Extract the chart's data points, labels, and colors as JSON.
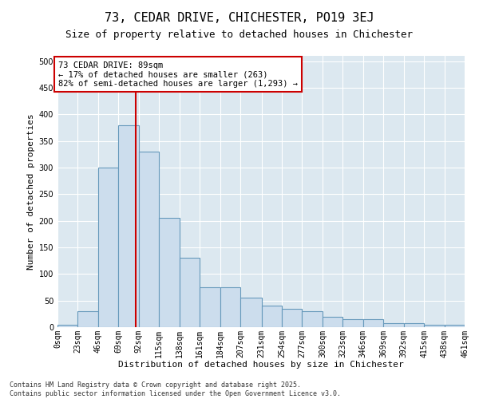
{
  "title": "73, CEDAR DRIVE, CHICHESTER, PO19 3EJ",
  "subtitle": "Size of property relative to detached houses in Chichester",
  "xlabel": "Distribution of detached houses by size in Chichester",
  "ylabel": "Number of detached properties",
  "bar_edges": [
    0,
    23,
    46,
    69,
    92,
    115,
    138,
    161,
    184,
    207,
    231,
    254,
    277,
    300,
    323,
    346,
    369,
    392,
    415,
    438,
    461
  ],
  "bar_heights": [
    5,
    30,
    300,
    380,
    330,
    205,
    130,
    75,
    75,
    55,
    40,
    35,
    30,
    20,
    15,
    15,
    8,
    8,
    5,
    5
  ],
  "bar_color": "#ccdded",
  "bar_edge_color": "#6699bb",
  "bar_linewidth": 0.8,
  "vline_x": 89,
  "vline_color": "#cc0000",
  "vline_linewidth": 1.5,
  "annotation_title": "73 CEDAR DRIVE: 89sqm",
  "annotation_line1": "← 17% of detached houses are smaller (263)",
  "annotation_line2": "82% of semi-detached houses are larger (1,293) →",
  "ylim": [
    0,
    510
  ],
  "xlim": [
    0,
    461
  ],
  "yticks": [
    0,
    50,
    100,
    150,
    200,
    250,
    300,
    350,
    400,
    450,
    500
  ],
  "bg_color": "#dce8f0",
  "grid_color": "#ffffff",
  "fig_bg_color": "#ffffff",
  "footnote1": "Contains HM Land Registry data © Crown copyright and database right 2025.",
  "footnote2": "Contains public sector information licensed under the Open Government Licence v3.0.",
  "tick_labels": [
    "0sqm",
    "23sqm",
    "46sqm",
    "69sqm",
    "92sqm",
    "115sqm",
    "138sqm",
    "161sqm",
    "184sqm",
    "207sqm",
    "231sqm",
    "254sqm",
    "277sqm",
    "300sqm",
    "323sqm",
    "346sqm",
    "369sqm",
    "392sqm",
    "415sqm",
    "438sqm",
    "461sqm"
  ],
  "title_fontsize": 11,
  "subtitle_fontsize": 9,
  "axis_label_fontsize": 8,
  "tick_fontsize": 7,
  "annot_fontsize": 7.5,
  "footnote_fontsize": 6
}
